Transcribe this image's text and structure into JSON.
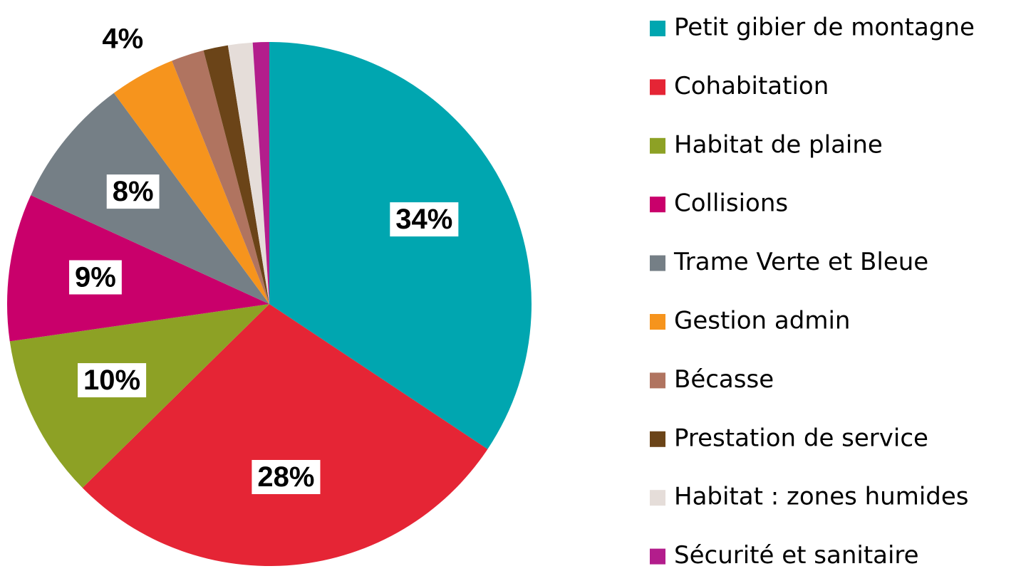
{
  "chart_data": {
    "type": "pie",
    "categories": [
      "Petit gibier de montagne",
      "Cohabitation",
      "Habitat de plaine",
      "Collisions",
      "Trame Verte et Bleue",
      "Gestion admin",
      "Bécasse",
      "Prestation de service",
      "Habitat : zones humides",
      "Sécurité et sanitaire"
    ],
    "values": [
      34,
      28,
      10,
      9,
      8,
      4,
      2,
      1.5,
      1.5,
      1
    ],
    "value_labels": [
      "34%",
      "28%",
      "10%",
      "9%",
      "8%",
      "4%",
      null,
      null,
      null,
      null
    ],
    "colors": [
      "#00a6b0",
      "#e52535",
      "#8da125",
      "#c9006b",
      "#757f86",
      "#f6941d",
      "#b07460",
      "#6b4418",
      "#e5ddd9",
      "#b31d8c"
    ],
    "legend": "right"
  }
}
